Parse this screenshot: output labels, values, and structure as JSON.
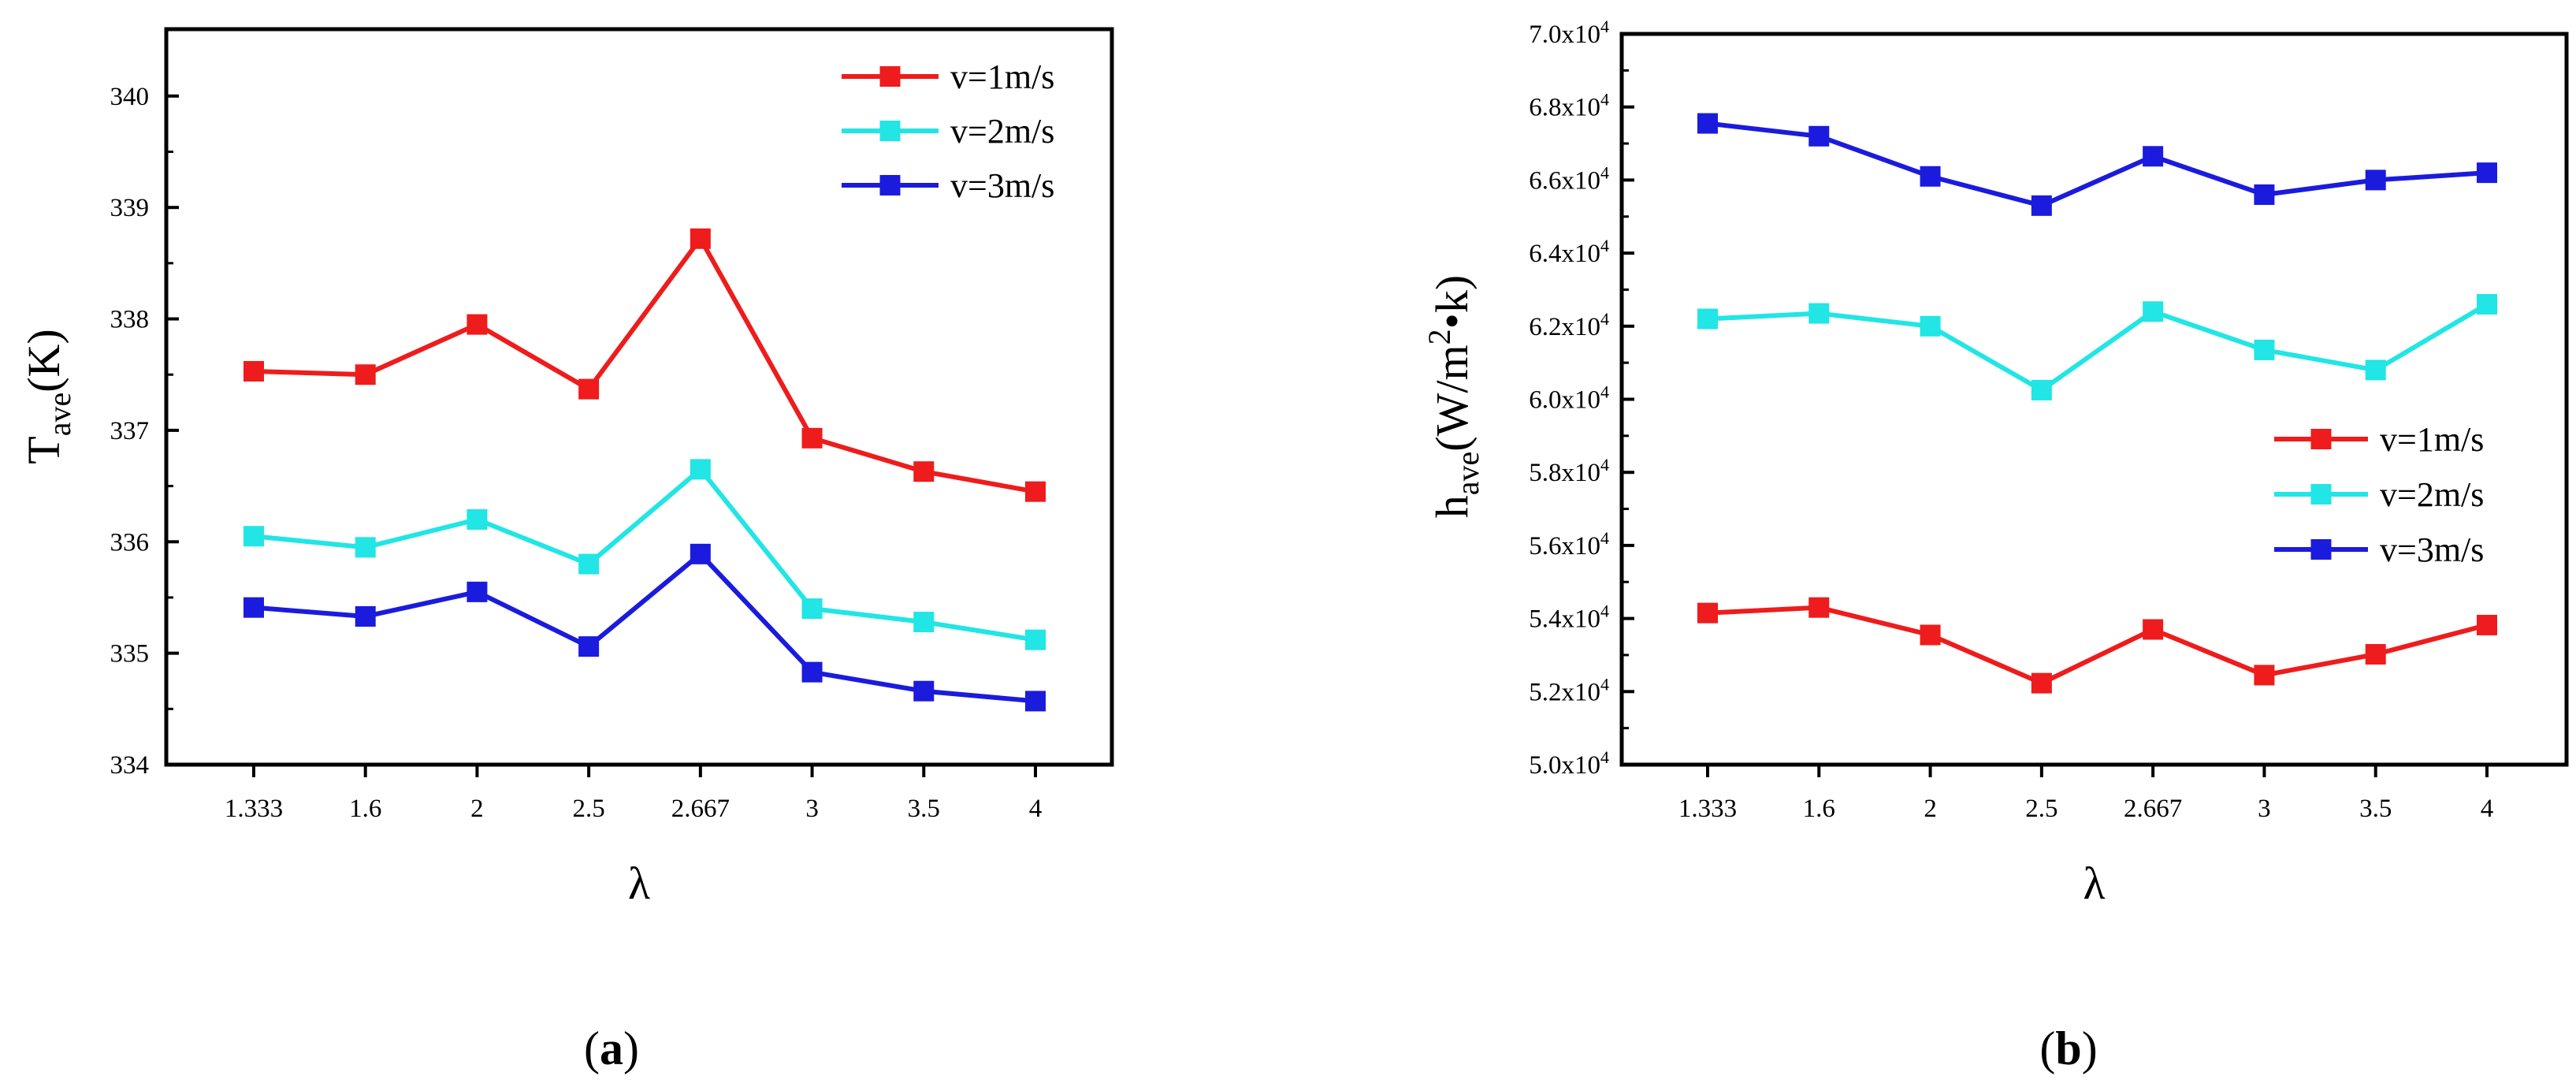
{
  "chart_data": [
    {
      "id": "a",
      "type": "line",
      "caption": "(a)",
      "caption_parts": [
        "(",
        "a",
        ")"
      ],
      "xlabel": "λ",
      "ylabel": "T",
      "ylabel_sub": "ave",
      "ylabel_tail": "(K)",
      "categories": [
        "1.333",
        "1.6",
        "2",
        "2.5",
        "2.667",
        "3",
        "3.5",
        "4"
      ],
      "ylim": [
        334,
        340.6
      ],
      "yticks": [
        334,
        335,
        336,
        337,
        338,
        339,
        340
      ],
      "ytick_labels": [
        "334",
        "335",
        "336",
        "337",
        "338",
        "339",
        "340"
      ],
      "legend_position": "top-right",
      "series": [
        {
          "name": "v=1m/s",
          "color": "#ee1c1c",
          "values": [
            337.53,
            337.5,
            337.95,
            337.37,
            338.72,
            336.93,
            336.63,
            336.45
          ]
        },
        {
          "name": "v=2m/s",
          "color": "#22e5e5",
          "values": [
            336.05,
            335.95,
            336.2,
            335.8,
            336.65,
            335.4,
            335.28,
            335.12
          ]
        },
        {
          "name": "v=3m/s",
          "color": "#1b1bde",
          "values": [
            335.41,
            335.33,
            335.55,
            335.06,
            335.89,
            334.83,
            334.66,
            334.57
          ]
        }
      ]
    },
    {
      "id": "b",
      "type": "line",
      "caption": "(b)",
      "caption_parts": [
        "(",
        "b",
        ")"
      ],
      "xlabel": "λ",
      "ylabel": "h",
      "ylabel_sub": "ave",
      "ylabel_tail": "(W/m",
      "ylabel_sup": "2",
      "ylabel_end": "•k)",
      "categories": [
        "1.333",
        "1.6",
        "2",
        "2.5",
        "2.667",
        "3",
        "3.5",
        "4"
      ],
      "ylim": [
        50000,
        70000
      ],
      "yticks": [
        50000,
        52000,
        54000,
        56000,
        58000,
        60000,
        62000,
        64000,
        66000,
        68000,
        70000
      ],
      "ytick_mantissa": [
        "5.0x10",
        "5.2x10",
        "5.4x10",
        "5.6x10",
        "5.8x10",
        "6.0x10",
        "6.2x10",
        "6.4x10",
        "6.6x10",
        "6.8x10",
        "7.0x10"
      ],
      "ytick_exponent": "4",
      "legend_position": "center-right",
      "series": [
        {
          "name": "v=1m/s",
          "color": "#ee1c1c",
          "values": [
            54150,
            54300,
            53550,
            52230,
            53700,
            52450,
            53020,
            53820
          ]
        },
        {
          "name": "v=2m/s",
          "color": "#22e5e5",
          "values": [
            62200,
            62350,
            62000,
            60250,
            62400,
            61350,
            60800,
            62600
          ]
        },
        {
          "name": "v=3m/s",
          "color": "#1b1bde",
          "values": [
            67550,
            67200,
            66100,
            65300,
            66650,
            65600,
            66000,
            66200
          ]
        }
      ]
    }
  ]
}
